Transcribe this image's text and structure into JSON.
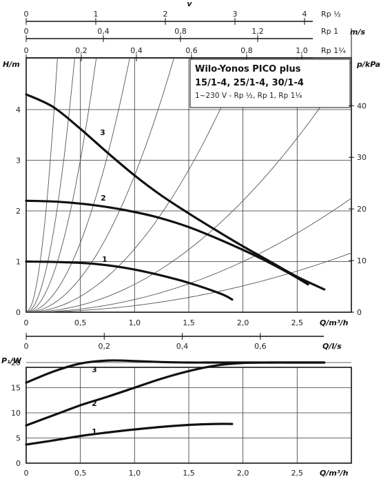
{
  "chart_data": [
    {
      "type": "table",
      "title": "",
      "scales": [
        {
          "label": "v",
          "ticks": [
            "0",
            "1",
            "2",
            "3",
            "4"
          ],
          "pipe": "Rp ½"
        },
        {
          "label": "m/s",
          "ticks": [
            "0",
            "0,4",
            "0,8",
            "1,2"
          ],
          "pipe": "Rp 1"
        },
        {
          "label": "",
          "ticks": [
            "0",
            "0,2",
            "0,4",
            "0,6",
            "0,8",
            "1,0"
          ],
          "pipe": "Rp 1¼"
        }
      ]
    },
    {
      "type": "line",
      "title": "Wilo-Yonos PICO plus",
      "title_line2": "15/1-4, 25/1-4, 30/1-4",
      "subtitle": "1~230 V - Rp ½, Rp 1, Rp 1¼",
      "xlabel": "Q/m³/h",
      "ylabel": "H/m",
      "y2label": "p/kPa",
      "xlim": [
        0,
        3
      ],
      "ylim": [
        0,
        4.5
      ],
      "x_ticks": [
        "0",
        "0,5",
        "1,0",
        "1,5",
        "2,0",
        "2,5"
      ],
      "y_ticks": [
        "0",
        "1",
        "2",
        "3",
        "4"
      ],
      "y2_ticks": [
        "0",
        "10",
        "20",
        "30",
        "40"
      ],
      "grid": true,
      "series": [
        {
          "name": "1",
          "x": [
            0,
            0.3,
            0.6,
            0.9,
            1.2,
            1.5,
            1.8,
            1.9
          ],
          "y": [
            1.0,
            0.99,
            0.96,
            0.88,
            0.75,
            0.58,
            0.36,
            0.25
          ]
        },
        {
          "name": "2",
          "x": [
            0,
            0.3,
            0.6,
            0.9,
            1.2,
            1.5,
            1.8,
            2.1,
            2.4,
            2.6
          ],
          "y": [
            2.2,
            2.18,
            2.12,
            2.02,
            1.88,
            1.68,
            1.42,
            1.13,
            0.8,
            0.55
          ]
        },
        {
          "name": "3",
          "x": [
            0,
            0.25,
            0.5,
            0.75,
            1.0,
            1.25,
            1.5,
            1.75,
            2.0,
            2.25,
            2.5,
            2.75
          ],
          "y": [
            4.3,
            4.05,
            3.62,
            3.15,
            2.7,
            2.3,
            1.95,
            1.62,
            1.3,
            1.0,
            0.7,
            0.45
          ]
        }
      ],
      "system_curves_coefficients": [
        60,
        25,
        12,
        5.5,
        2.7,
        1.25,
        0.55,
        0.25,
        0.13
      ]
    },
    {
      "type": "line",
      "title": "",
      "xlabel": "Q/m³/h",
      "top_xlabel": "Q/l/s",
      "ylabel": "P₁/W",
      "xlim": [
        0,
        3
      ],
      "ylim": [
        0,
        23
      ],
      "x_ticks": [
        "0",
        "0,5",
        "1,0",
        "1,5",
        "2,0",
        "2,5"
      ],
      "top_x_ticks": [
        "0",
        "0,2",
        "0,4",
        "0,6"
      ],
      "y_ticks": [
        "0",
        "5",
        "10",
        "15",
        "20"
      ],
      "grid": true,
      "series": [
        {
          "name": "1",
          "x": [
            0,
            0.25,
            0.5,
            0.75,
            1.0,
            1.25,
            1.5,
            1.75,
            1.9
          ],
          "y": [
            3.7,
            4.5,
            5.4,
            6.1,
            6.7,
            7.2,
            7.6,
            7.8,
            7.8
          ]
        },
        {
          "name": "2",
          "x": [
            0,
            0.25,
            0.5,
            0.75,
            1.0,
            1.25,
            1.5,
            1.75,
            2.0,
            2.25,
            2.5,
            2.75
          ],
          "y": [
            7.5,
            9.5,
            11.5,
            13.2,
            15.0,
            16.8,
            18.3,
            19.4,
            19.9,
            20.0,
            20.0,
            20.0
          ]
        },
        {
          "name": "3",
          "x": [
            0,
            0.25,
            0.5,
            0.75,
            1.0,
            1.25,
            1.5,
            1.75,
            2.0,
            2.25,
            2.5,
            2.75
          ],
          "y": [
            16.0,
            18.2,
            19.8,
            20.4,
            20.3,
            20.1,
            20.0,
            20.0,
            20.0,
            20.0,
            20.0,
            20.0
          ]
        }
      ]
    }
  ]
}
